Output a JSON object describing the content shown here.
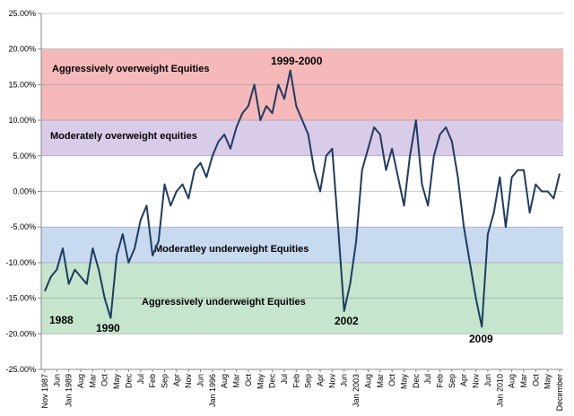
{
  "chart_data": {
    "type": "line",
    "categories": [
      "Nov 1987",
      null,
      "Jun",
      null,
      "Jan 1989",
      null,
      "Aug",
      null,
      "Mar",
      null,
      "Oct",
      null,
      "May",
      null,
      "Dec",
      null,
      "Jul",
      null,
      "Feb",
      null,
      "Sep",
      null,
      "Apr",
      null,
      "Nov",
      null,
      "Jun",
      null,
      "Jan 1996",
      null,
      "Aug",
      null,
      "Mar",
      null,
      "Oct",
      null,
      "May",
      null,
      "Dec",
      null,
      "Jul",
      null,
      "Feb",
      null,
      "Sep",
      null,
      "Apr",
      null,
      "Nov",
      null,
      "Jun",
      null,
      "Jan 2003",
      null,
      "Aug",
      null,
      "Mar",
      null,
      "Oct",
      null,
      "May",
      null,
      "Dec",
      null,
      "Jul",
      null,
      "Feb",
      null,
      "Sep",
      null,
      "Apr",
      null,
      "Nov",
      null,
      "Jun",
      null,
      "Jan 2010",
      null,
      "Aug",
      null,
      "Mar",
      null,
      "Oct",
      null,
      "May",
      null,
      "December"
    ],
    "values": [
      -14,
      -12,
      -11,
      -8,
      -13,
      -11,
      -12,
      -13,
      -8,
      -11,
      -15,
      -17.8,
      -9,
      -6,
      -10,
      -8,
      -4,
      -2,
      -9,
      -7,
      1,
      -2,
      0,
      1,
      -1,
      3,
      4,
      2,
      5,
      7,
      8,
      6,
      9,
      11,
      12,
      15,
      10,
      12,
      11,
      15,
      13,
      17,
      12,
      10,
      8,
      3,
      0,
      5,
      6,
      -5,
      -16.8,
      -13,
      -7,
      3,
      6,
      9,
      8,
      3,
      6,
      2,
      -2,
      5,
      10,
      1,
      -2,
      5,
      8,
      9,
      7,
      2,
      -5,
      -10,
      -15,
      -19,
      -6,
      -3,
      2,
      -5,
      2,
      3,
      3,
      -3,
      1,
      0,
      0,
      -1,
      2.5
    ],
    "color": "#1f3b63",
    "ylim": [
      -25,
      25
    ],
    "yticks": [
      {
        "value": -25,
        "label": "-25.00%"
      },
      {
        "value": -20,
        "label": "-20.00%"
      },
      {
        "value": -15,
        "label": "-15.00%"
      },
      {
        "value": -10,
        "label": "-10.00%"
      },
      {
        "value": -5,
        "label": "-5.00%"
      },
      {
        "value": 0,
        "label": "0.00%"
      },
      {
        "value": 5,
        "label": "5.00%"
      },
      {
        "value": 10,
        "label": "10.00%"
      },
      {
        "value": 15,
        "label": "15.00%"
      },
      {
        "value": 20,
        "label": "20.00%"
      },
      {
        "value": 25,
        "label": "25.00%"
      }
    ],
    "grid": true,
    "bands": [
      {
        "label": "Aggressively overweight Equities",
        "from": 10,
        "to": 20,
        "color": "#f6b9b9"
      },
      {
        "label": "Moderately overweight equities",
        "from": 5,
        "to": 10,
        "color": "#d9cce8"
      },
      {
        "label": "Moderatley underweight Equities",
        "from": -10,
        "to": -5,
        "color": "#c8daf0"
      },
      {
        "label": "Aggressively underweight Equities",
        "from": -20,
        "to": -10,
        "color": "#c5e6cc"
      }
    ],
    "annotations": [
      "1988",
      "1990",
      "1999-2000",
      "2002",
      "2009"
    ]
  }
}
